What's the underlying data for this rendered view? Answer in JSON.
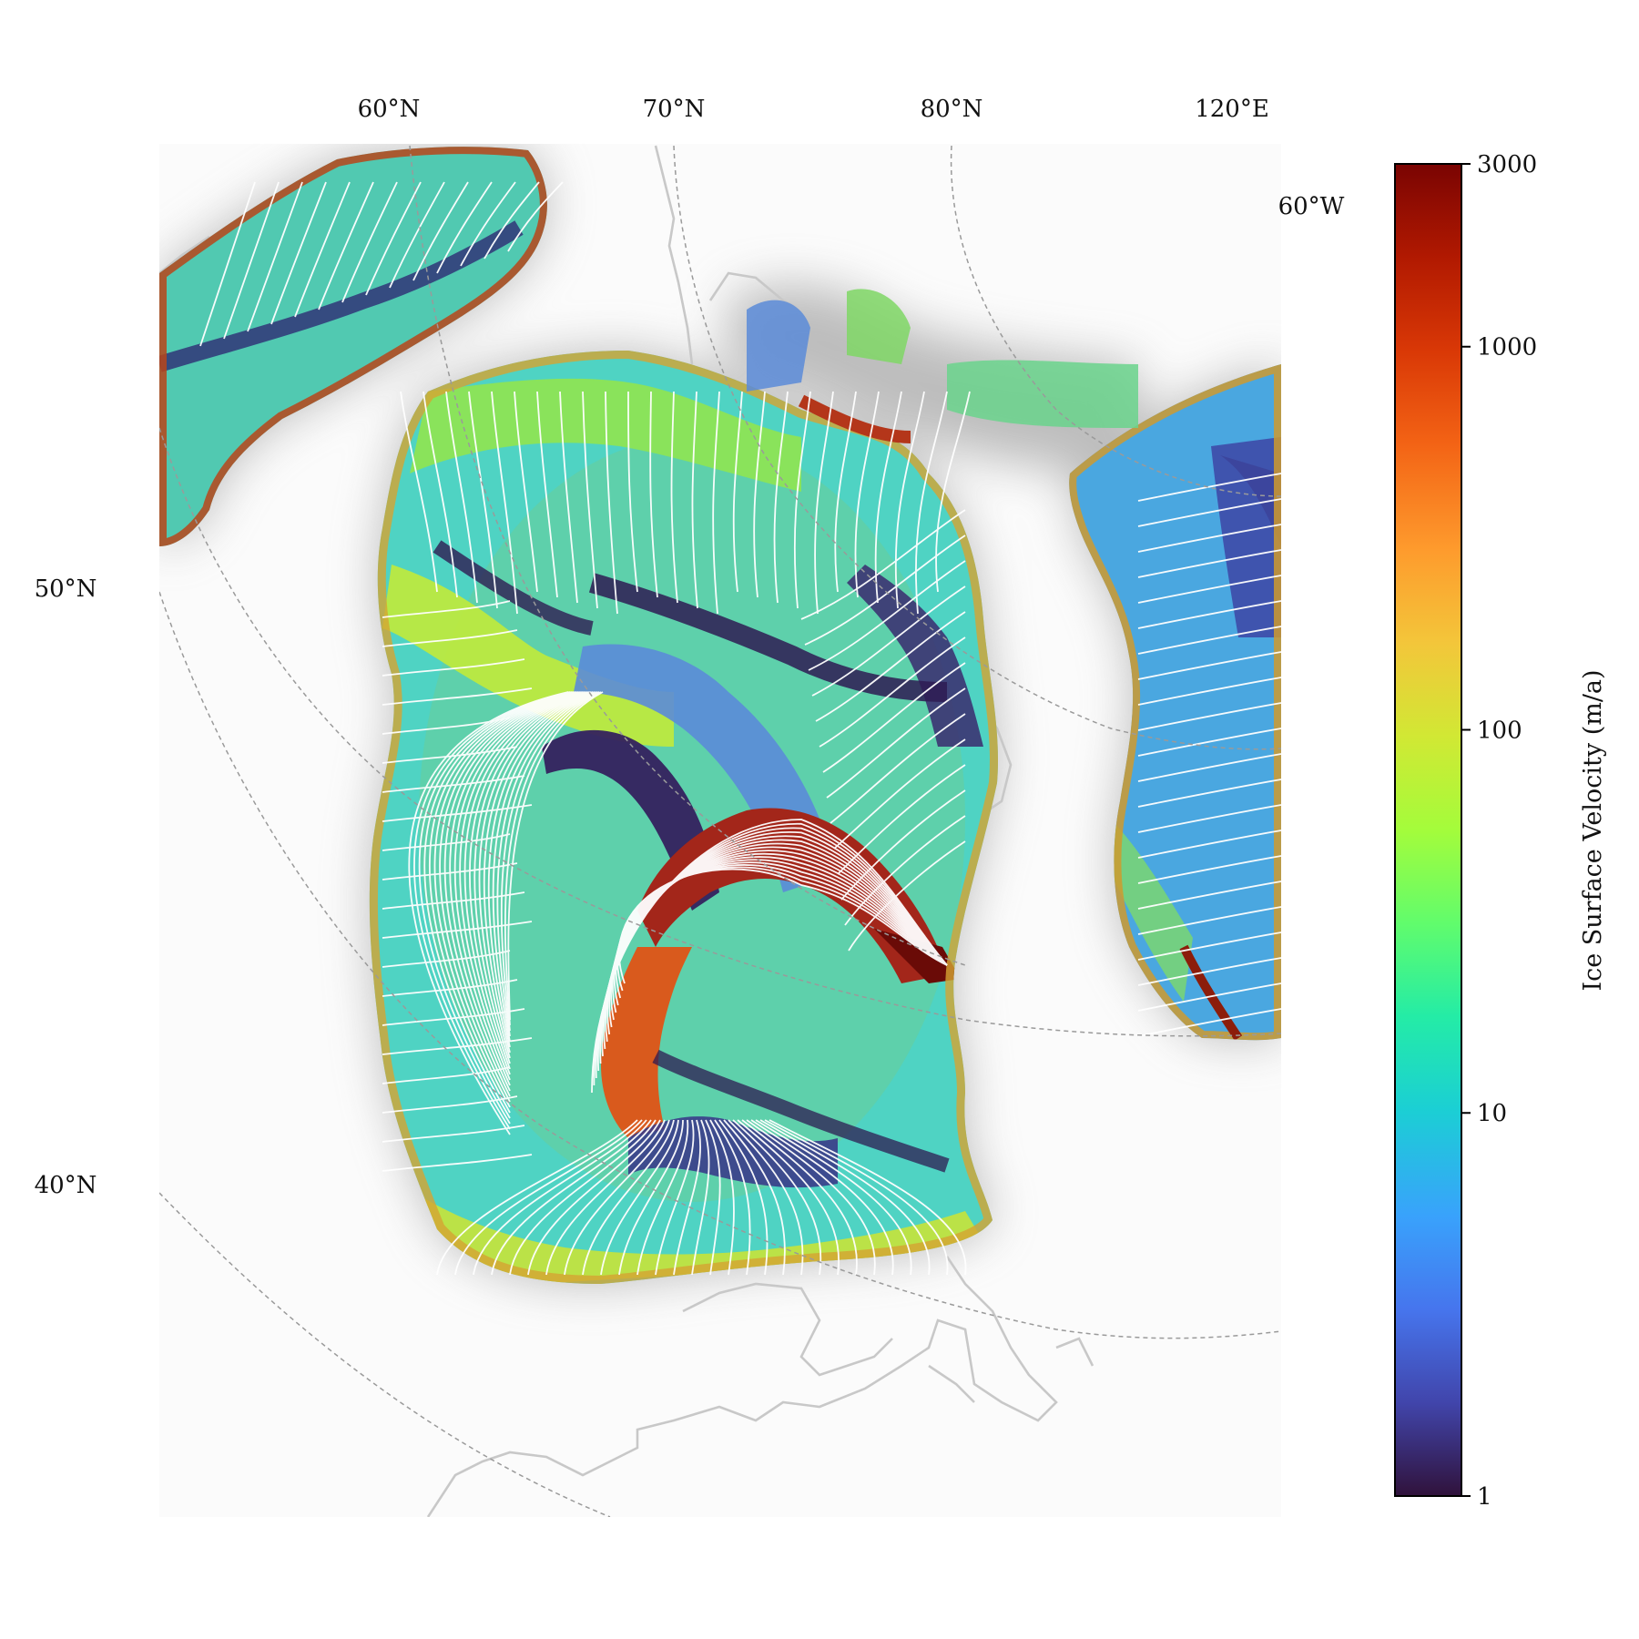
{
  "map": {
    "top_labels": [
      "60°N",
      "70°N",
      "80°N",
      "120°E"
    ],
    "right_labels": [
      "60°W"
    ],
    "left_labels": [
      "50°N",
      "40°N"
    ]
  },
  "colorbar": {
    "title": "Ice Surface Velocity (m/a)",
    "scale": "log",
    "range": [
      1,
      3000
    ],
    "ticks": [
      {
        "value": 3000,
        "label": "3000"
      },
      {
        "value": 1000,
        "label": "1000"
      },
      {
        "value": 100,
        "label": "100"
      },
      {
        "value": 10,
        "label": "10"
      },
      {
        "value": 1,
        "label": "1"
      }
    ],
    "colormap": [
      "#30123b",
      "#4145ab",
      "#4675ed",
      "#39a2fc",
      "#1bcfd4",
      "#24eca6",
      "#61fc6c",
      "#a4fc3b",
      "#d1e834",
      "#f3c63a",
      "#fe9b2d",
      "#f36315",
      "#d93806",
      "#b11901",
      "#7a0402"
    ]
  },
  "style": {
    "streamline_color": "#ffffff",
    "graticule_color": "#9a9a9a",
    "coastline_color": "#c8c8c8"
  }
}
